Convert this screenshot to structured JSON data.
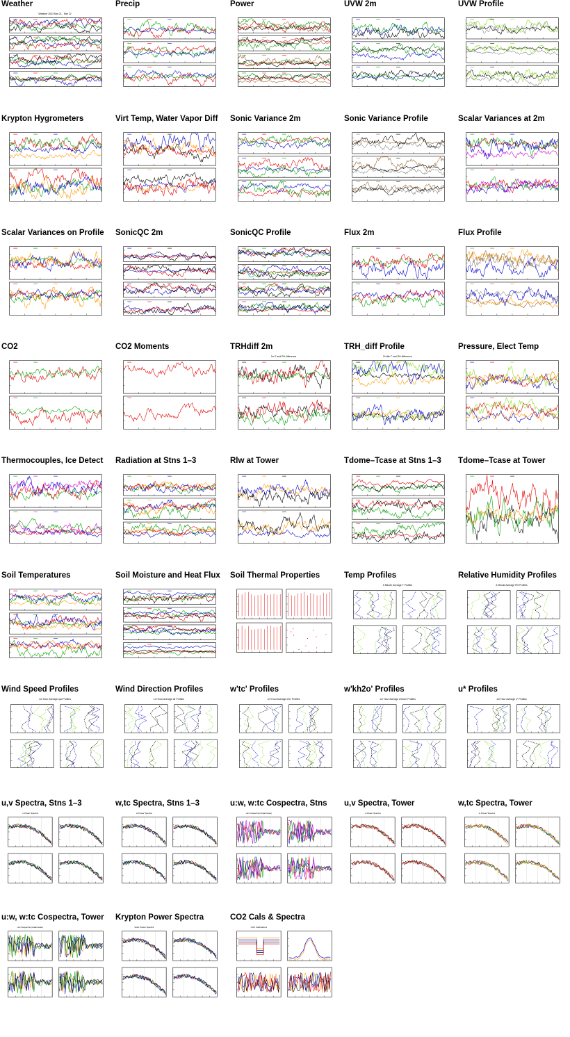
{
  "page": {
    "background": "#ffffff"
  },
  "colors": {
    "red": "#e00000",
    "green": "#00a000",
    "blue": "#0000cc",
    "black": "#000000",
    "orange": "#ff9900",
    "lime": "#88dd22",
    "gray": "#888888",
    "magenta": "#cc00cc",
    "brown": "#996633",
    "frame": "#000000"
  },
  "plots": [
    {
      "title": "Weather",
      "kind": "ts",
      "panels": 4,
      "series": [
        "blue",
        "red",
        "green",
        "black"
      ],
      "small_caption": "Weather 2003 Mar 21 - Mar 22"
    },
    {
      "title": "Precip",
      "kind": "ts",
      "panels": 3,
      "series": [
        "green",
        "red",
        "blue"
      ],
      "small_caption": ""
    },
    {
      "title": "Power",
      "kind": "ts",
      "panels": 4,
      "series": [
        "green",
        "brown",
        "red",
        "black"
      ],
      "small_caption": ""
    },
    {
      "title": "UVW 2m",
      "kind": "ts",
      "panels": 3,
      "series": [
        "blue",
        "green",
        "black"
      ],
      "small_caption": ""
    },
    {
      "title": "UVW Profile",
      "kind": "ts",
      "panels": 3,
      "series": [
        "gray",
        "black",
        "lime"
      ],
      "small_caption": ""
    },
    {
      "title": "Krypton Hygrometers",
      "kind": "ts",
      "panels": 2,
      "series": [
        "red",
        "green",
        "blue",
        "orange"
      ],
      "small_caption": ""
    },
    {
      "title": "Virt Temp, Water Vapor Diff",
      "kind": "ts",
      "panels": 2,
      "series": [
        "blue",
        "orange",
        "black",
        "red"
      ],
      "small_caption": ""
    },
    {
      "title": "Sonic Variance 2m",
      "kind": "ts",
      "panels": 3,
      "series": [
        "blue",
        "red",
        "green"
      ],
      "small_caption": ""
    },
    {
      "title": "Sonic Variance Profile",
      "kind": "ts",
      "panels": 3,
      "series": [
        "gray",
        "brown",
        "black"
      ],
      "small_caption": ""
    },
    {
      "title": "Scalar Variances at 2m",
      "kind": "ts",
      "panels": 2,
      "series": [
        "green",
        "red",
        "blue",
        "magenta"
      ],
      "small_caption": ""
    },
    {
      "title": "Scalar Variances on Profile",
      "kind": "ts",
      "panels": 2,
      "series": [
        "red",
        "green",
        "orange",
        "blue"
      ],
      "small_caption": ""
    },
    {
      "title": "SonicQC 2m",
      "kind": "ts",
      "panels": 4,
      "series": [
        "blue",
        "red",
        "black"
      ],
      "small_caption": ""
    },
    {
      "title": "SonicQC Profile",
      "kind": "ts",
      "panels": 4,
      "series": [
        "red",
        "green",
        "black",
        "blue"
      ],
      "small_caption": ""
    },
    {
      "title": "Flux 2m",
      "kind": "ts",
      "panels": 2,
      "series": [
        "green",
        "blue",
        "red"
      ],
      "small_caption": ""
    },
    {
      "title": "Flux Profile",
      "kind": "ts",
      "panels": 2,
      "series": [
        "gray",
        "brown",
        "orange",
        "blue"
      ],
      "small_caption": ""
    },
    {
      "title": "CO2",
      "kind": "ts",
      "panels": 2,
      "series": [
        "red",
        "green"
      ],
      "small_caption": ""
    },
    {
      "title": "CO2 Moments",
      "kind": "ts",
      "panels": 2,
      "series": [
        "red"
      ],
      "small_caption": ""
    },
    {
      "title": "TRHdiff 2m",
      "kind": "ts",
      "panels": 2,
      "series": [
        "black",
        "red",
        "green"
      ],
      "small_caption": "2m T and RH difference"
    },
    {
      "title": "TRH_diff Profile",
      "kind": "ts",
      "panels": 2,
      "series": [
        "black",
        "lime",
        "orange",
        "blue"
      ],
      "small_caption": "Profile T and RH difference"
    },
    {
      "title": "Pressure, Elect Temp",
      "kind": "ts",
      "panels": 2,
      "series": [
        "blue",
        "red",
        "lime",
        "orange"
      ],
      "small_caption": ""
    },
    {
      "title": "Thermocouples, Ice Detect",
      "kind": "ts",
      "panels": 2,
      "series": [
        "green",
        "magenta",
        "blue",
        "red"
      ],
      "small_caption": ""
    },
    {
      "title": "Radiation at Stns 1–3",
      "kind": "ts",
      "panels": 3,
      "series": [
        "green",
        "orange",
        "blue",
        "red"
      ],
      "small_caption": ""
    },
    {
      "title": "Rlw at Tower",
      "kind": "ts",
      "panels": 2,
      "series": [
        "blue",
        "orange",
        "black"
      ],
      "small_caption": ""
    },
    {
      "title": "Tdome–Tcase at Stns 1–3",
      "kind": "ts",
      "panels": 3,
      "series": [
        "red",
        "green",
        "black"
      ],
      "small_caption": ""
    },
    {
      "title": "Tdome–Tcase at Tower",
      "kind": "ts",
      "panels": 1,
      "series": [
        "green",
        "red",
        "black",
        "orange"
      ],
      "small_caption": ""
    },
    {
      "title": "Soil Temperatures",
      "kind": "ts",
      "panels": 3,
      "series": [
        "red",
        "green",
        "blue",
        "orange"
      ],
      "small_caption": ""
    },
    {
      "title": "Soil Moisture and Heat Flux",
      "kind": "ts",
      "panels": 4,
      "series": [
        "green",
        "red",
        "blue",
        "black"
      ],
      "small_caption": ""
    },
    {
      "title": "Soil Thermal Properties",
      "kind": "soil",
      "panels": 4,
      "series": [
        "red"
      ],
      "small_caption": ""
    },
    {
      "title": "Temp Profiles",
      "kind": "prof",
      "panels": 4,
      "series": [
        "blue",
        "lime",
        "black"
      ],
      "small_caption": "5 Minute Average T Profiles"
    },
    {
      "title": "Relative Humidity Profiles",
      "kind": "prof",
      "panels": 4,
      "series": [
        "blue",
        "lime",
        "black"
      ],
      "small_caption": "5 Minute Average RH Profiles"
    },
    {
      "title": "Wind Speed Profiles",
      "kind": "prof",
      "panels": 4,
      "series": [
        "blue",
        "lime",
        "black"
      ],
      "small_caption": "1/2 Hour Average spd Profiles"
    },
    {
      "title": "Wind Direction Profiles",
      "kind": "prof",
      "panels": 4,
      "series": [
        "blue",
        "lime",
        "black"
      ],
      "small_caption": "1/2 Hour Average dir Profiles"
    },
    {
      "title": "w'tc' Profiles",
      "kind": "prof",
      "panels": 4,
      "series": [
        "blue",
        "lime",
        "black"
      ],
      "small_caption": "1/2 Hour Average w'tc' Profiles"
    },
    {
      "title": "w'kh2o' Profiles",
      "kind": "prof",
      "panels": 4,
      "series": [
        "blue",
        "lime",
        "black"
      ],
      "small_caption": "1/2 Hour Average w'kh2o' Profiles"
    },
    {
      "title": "u* Profiles",
      "kind": "prof",
      "panels": 4,
      "series": [
        "blue",
        "lime",
        "black"
      ],
      "small_caption": "1/2 Hour Average u* Profiles"
    },
    {
      "title": "u,v Spectra, Stns 1–3",
      "kind": "spec",
      "panels": 4,
      "series": [
        "red",
        "blue",
        "green",
        "black"
      ],
      "small_caption": "u Power Spectra"
    },
    {
      "title": "w,tc Spectra, Stns 1–3",
      "kind": "spec",
      "panels": 4,
      "series": [
        "red",
        "blue",
        "green",
        "black"
      ],
      "small_caption": "w Power Spectra"
    },
    {
      "title": "u:w, w:tc Cospectra, Stns",
      "kind": "cospec",
      "panels": 4,
      "series": [
        "red",
        "blue",
        "green",
        "magenta"
      ],
      "small_caption": "uw Cospectra (streamwise)"
    },
    {
      "title": "u,v Spectra, Tower",
      "kind": "spec",
      "panels": 4,
      "series": [
        "gray",
        "brown",
        "black",
        "red"
      ],
      "small_caption": "u Power Spectra"
    },
    {
      "title": "w,tc Spectra, Tower",
      "kind": "spec",
      "panels": 4,
      "series": [
        "red",
        "blue",
        "green",
        "orange"
      ],
      "small_caption": "w Power Spectra"
    },
    {
      "title": "u:w, w:tc Cospectra, Tower",
      "kind": "cospec",
      "panels": 4,
      "series": [
        "orange",
        "blue",
        "green",
        "black"
      ],
      "small_caption": "uw Cospectra (streamwise)"
    },
    {
      "title": "Krypton Power Spectra",
      "kind": "spec",
      "panels": 4,
      "series": [
        "red",
        "green",
        "blue",
        "black"
      ],
      "small_caption": "kh2o Power Spectra"
    },
    {
      "title": "CO2 Cals & Spectra",
      "kind": "co2",
      "panels": 4,
      "series": [
        "orange",
        "blue",
        "black",
        "red"
      ],
      "small_caption": "CO2 Calibrations"
    }
  ]
}
